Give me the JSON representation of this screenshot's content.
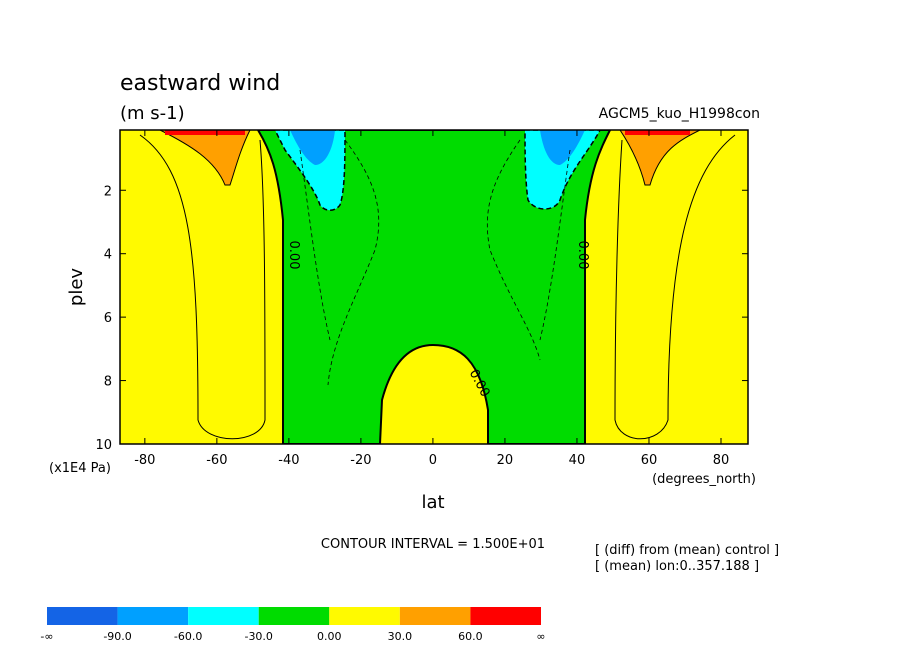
{
  "chart_data": {
    "type": "contour",
    "title": "eastward wind",
    "units": "(m s-1)",
    "run_name": "AGCM5_kuo_H1998con",
    "x_label": "lat",
    "x_unit": "(degrees_north)",
    "y_label": "plev",
    "y_unit": "(x1E4 Pa)",
    "xlim": [
      -86.9,
      87.5
    ],
    "xticks": [
      -80,
      -60,
      -40,
      -20,
      0,
      20,
      40,
      60,
      80
    ],
    "ylim": [
      10,
      0.1
    ],
    "yticks": [
      2,
      4,
      6,
      8,
      10
    ],
    "contour_interval": "CONTOUR INTERVAL = 1.500E+01",
    "notes": [
      "[ (diff) from (mean) control ]",
      "[ (mean) lon:0..357.188 ]"
    ],
    "contour_labels": [
      {
        "value": 0,
        "label": "0.00"
      },
      {
        "value": 0,
        "label": "0.00"
      },
      {
        "value": 0,
        "label": "0.00"
      }
    ],
    "colorbar": {
      "colors": [
        "#1464e6",
        "#00a0ff",
        "#00ffff",
        "#00dc00",
        "#fffa00",
        "#ffa000",
        "#ff0000"
      ],
      "labels": [
        "-∞",
        "-90.0",
        "-60.0",
        "-30.0",
        "0.00",
        "30.0",
        "60.0",
        "∞"
      ]
    }
  }
}
